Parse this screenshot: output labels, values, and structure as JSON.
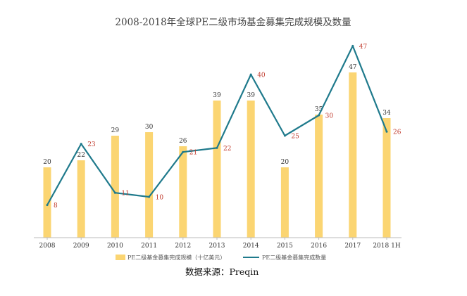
{
  "chart_data": {
    "type": "bar",
    "title": "2008-2018年全球PE二级市场基金募集完成规模及数量",
    "categories": [
      "2008",
      "2009",
      "2010",
      "2011",
      "2012",
      "2013",
      "2014",
      "2015",
      "2016",
      "2017",
      "2018 1H"
    ],
    "series": [
      {
        "name": "PE二级基金募集完成规模（十亿美元）",
        "type": "bar",
        "color": "#fbd572",
        "values": [
          20,
          22,
          29,
          30,
          26,
          39,
          39,
          20,
          35,
          47,
          34
        ]
      },
      {
        "name": "PE二级基金募集完成数量",
        "type": "line",
        "color": "#1f7a8c",
        "values": [
          8,
          23,
          11,
          10,
          21,
          22,
          40,
          25,
          30,
          47,
          26
        ]
      }
    ],
    "grid": false,
    "legend_position": "bottom",
    "label_colors": {
      "bar": "#333333",
      "line": "#c0392b"
    }
  },
  "source": "数据来源：Preqin"
}
